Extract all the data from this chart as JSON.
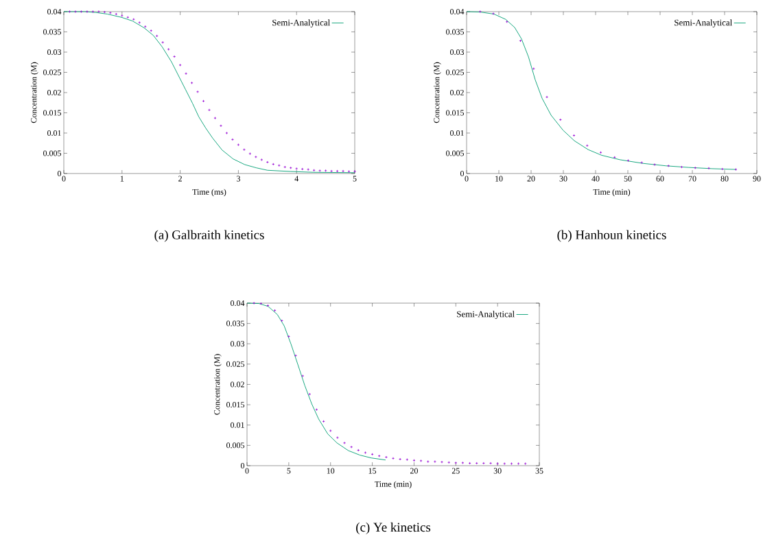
{
  "chart_data": [
    {
      "type": "line",
      "title": "(a) Galbraith kinetics",
      "xlabel": "Time (ms)",
      "ylabel": "Concentration (M)",
      "xlim": [
        0,
        5
      ],
      "ylim": [
        0,
        0.04
      ],
      "xticks": [
        0,
        1,
        2,
        3,
        4,
        5
      ],
      "yticks": [
        0,
        0.005,
        0.01,
        0.015,
        0.02,
        0.025,
        0.03,
        0.035,
        0.04
      ],
      "legend": "top right",
      "grid": false,
      "series": [
        {
          "type": "scatter",
          "marker": "cross",
          "color": "#9400d3",
          "x": [
            0.1,
            0.2,
            0.3,
            0.4,
            0.5,
            0.6,
            0.7,
            0.8,
            0.9,
            1.0,
            1.1,
            1.2,
            1.3,
            1.4,
            1.5,
            1.6,
            1.7,
            1.8,
            1.9,
            2.0,
            2.1,
            2.2,
            2.3,
            2.4,
            2.5,
            2.6,
            2.7,
            2.8,
            2.9,
            3.0,
            3.1,
            3.2,
            3.3,
            3.4,
            3.5,
            3.6,
            3.7,
            3.8,
            3.9,
            4.0,
            4.1,
            4.2,
            4.3,
            4.4,
            4.5,
            4.6,
            4.7,
            4.8,
            4.9,
            5.0
          ],
          "values": [
            0.04,
            0.04,
            0.04,
            0.04,
            0.04,
            0.04,
            0.0399,
            0.0397,
            0.0394,
            0.039,
            0.0386,
            0.0381,
            0.0373,
            0.0363,
            0.0353,
            0.034,
            0.0324,
            0.0307,
            0.0289,
            0.0268,
            0.0247,
            0.0224,
            0.0202,
            0.0179,
            0.0157,
            0.0137,
            0.0118,
            0.01,
            0.0084,
            0.0071,
            0.0059,
            0.0049,
            0.0041,
            0.0034,
            0.0028,
            0.0023,
            0.002,
            0.0016,
            0.0014,
            0.0012,
            0.0011,
            0.001,
            0.0008,
            0.0007,
            0.0007,
            0.0006,
            0.0006,
            0.0006,
            0.0005,
            0.0005
          ]
        },
        {
          "name": "Semi-Analytical",
          "color": "#009e73",
          "x": [
            0,
            0.36,
            0.55,
            0.75,
            0.99,
            1.18,
            1.38,
            1.54,
            1.69,
            1.85,
            1.97,
            2.09,
            2.21,
            2.32,
            2.44,
            2.56,
            2.72,
            2.91,
            3.11,
            3.31,
            3.5,
            3.9,
            4.29,
            5.0
          ],
          "values": [
            0.04,
            0.04,
            0.0398,
            0.0394,
            0.0386,
            0.0377,
            0.036,
            0.0341,
            0.0313,
            0.0276,
            0.0242,
            0.0208,
            0.0174,
            0.014,
            0.0112,
            0.0087,
            0.0058,
            0.0036,
            0.0022,
            0.0014,
            0.0008,
            0.0005,
            0.0003,
            0.0002
          ]
        }
      ]
    },
    {
      "type": "line",
      "title": "(b) Hanhoun kinetics",
      "xlabel": "Time (min)",
      "ylabel": "Concentration (M)",
      "xlim": [
        0,
        90
      ],
      "ylim": [
        0,
        0.04
      ],
      "xticks": [
        0,
        10,
        20,
        30,
        40,
        50,
        60,
        70,
        80,
        90
      ],
      "yticks": [
        0,
        0.005,
        0.01,
        0.015,
        0.02,
        0.025,
        0.03,
        0.035,
        0.04
      ],
      "legend": "top right",
      "grid": false,
      "series": [
        {
          "type": "scatter",
          "marker": "cross",
          "color": "#9400d3",
          "x": [
            4.2,
            8.3,
            12.5,
            16.7,
            20.8,
            24.9,
            29.1,
            33.3,
            37.4,
            41.6,
            45.9,
            50.1,
            54.3,
            58.3,
            62.6,
            66.7,
            70.9,
            75.1,
            79.3,
            83.5
          ],
          "values": [
            0.04,
            0.0395,
            0.0375,
            0.0328,
            0.0259,
            0.0189,
            0.0133,
            0.0094,
            0.0069,
            0.0052,
            0.004,
            0.0032,
            0.0027,
            0.0022,
            0.0019,
            0.0016,
            0.0014,
            0.0013,
            0.0011,
            0.001
          ]
        },
        {
          "name": "Semi-Analytical",
          "color": "#009e73",
          "x": [
            0,
            4.3,
            8.5,
            12.1,
            14.9,
            17.0,
            19.2,
            21.3,
            23.4,
            26.2,
            29.9,
            33.4,
            37.7,
            41.9,
            47.6,
            54.7,
            61.8,
            68.9,
            76.0,
            83.5
          ],
          "values": [
            0.04,
            0.0399,
            0.0394,
            0.0381,
            0.0361,
            0.0333,
            0.0288,
            0.0231,
            0.0186,
            0.0144,
            0.0107,
            0.0081,
            0.0059,
            0.0045,
            0.0034,
            0.0025,
            0.0019,
            0.0015,
            0.0012,
            0.001
          ]
        }
      ]
    },
    {
      "type": "line",
      "title": "(c) Ye kinetics",
      "xlabel": "Time (min)",
      "ylabel": "Concentration (M)",
      "xlim": [
        0,
        35
      ],
      "ylim": [
        0,
        0.04
      ],
      "xticks": [
        0,
        5,
        10,
        15,
        20,
        25,
        30,
        35
      ],
      "yticks": [
        0,
        0.005,
        0.01,
        0.015,
        0.02,
        0.025,
        0.03,
        0.035,
        0.04
      ],
      "legend": "top right",
      "grid": false,
      "series": [
        {
          "type": "scatter",
          "marker": "cross",
          "color": "#9400d3",
          "x": [
            0.83,
            1.67,
            2.5,
            3.33,
            4.17,
            5,
            5.83,
            6.67,
            7.5,
            8.33,
            9.17,
            10,
            10.83,
            11.67,
            12.5,
            13.33,
            14.17,
            15,
            15.83,
            16.67,
            17.5,
            18.33,
            19.17,
            20,
            20.83,
            21.67,
            22.5,
            23.33,
            24.17,
            25,
            25.83,
            26.67,
            27.5,
            28.33,
            29.17,
            30,
            30.83,
            31.67,
            32.5,
            33.33
          ],
          "values": [
            0.04,
            0.0399,
            0.0394,
            0.0382,
            0.0357,
            0.0318,
            0.0271,
            0.0221,
            0.0176,
            0.0138,
            0.0109,
            0.0086,
            0.0069,
            0.0056,
            0.0046,
            0.0038,
            0.0032,
            0.0028,
            0.0024,
            0.0021,
            0.0018,
            0.0016,
            0.0015,
            0.0013,
            0.0012,
            0.001,
            0.001,
            0.0009,
            0.0008,
            0.0007,
            0.0007,
            0.0006,
            0.0006,
            0.0006,
            0.0006,
            0.0005,
            0.0005,
            0.0005,
            0.0005,
            0.0005
          ]
        },
        {
          "name": "Semi-Analytical",
          "color": "#009e73",
          "x": [
            0,
            1.43,
            2.53,
            3.63,
            4.45,
            5.27,
            6.1,
            6.92,
            7.75,
            8.57,
            9.67,
            10.77,
            12.14,
            13.52,
            14.89,
            16.59
          ],
          "values": [
            0.04,
            0.0399,
            0.0392,
            0.0372,
            0.0344,
            0.0299,
            0.0248,
            0.0197,
            0.0152,
            0.0115,
            0.0078,
            0.0056,
            0.0037,
            0.0026,
            0.0019,
            0.0014
          ]
        }
      ]
    }
  ]
}
